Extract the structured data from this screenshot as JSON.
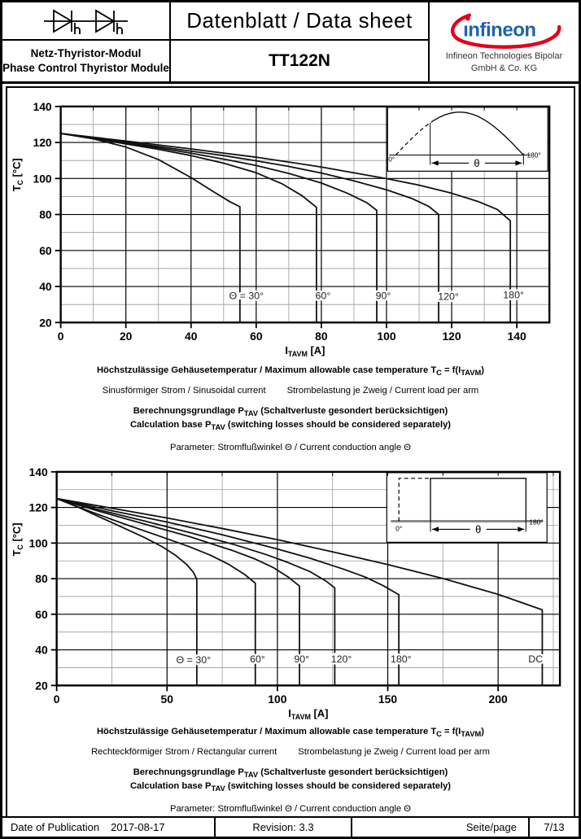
{
  "header": {
    "title": "Datenblatt / Data sheet",
    "part_number": "TT122N",
    "product_de": "Netz-Thyristor-Modul",
    "product_en": "Phase Control Thyristor Module",
    "logo_text": "infineon",
    "company_line1": "Infineon Technologies Bipolar",
    "company_line2": "GmbH & Co. KG",
    "logo_blue": "#1C63AE",
    "logo_red": "#E2001A"
  },
  "chart_data": [
    {
      "type": "line",
      "caption_title": "Höchstzulässige Gehäusetemperatur / Maximum allowable case temperature T_{C} = f(I_{TAVM})",
      "caption_current": "Sinusförmiger Strom / Sinusoidal current",
      "caption_load": "Strombelastung je Zweig / Current load per arm",
      "caption_calc_de": "Berechnungsgrundlage P_{TAV} (Schaltverluste gesondert berücksichtigen)",
      "caption_calc_en": "Calculation base P_{TAV} (switching losses should be considered separately)",
      "caption_param": "Parameter: Stromflußwinkel Θ  / Current conduction angle Θ",
      "xlabel": "I_{TAVM} [A]",
      "ylabel": "T_{C} [°C]",
      "xlim": [
        0,
        150
      ],
      "ylim": [
        20,
        140
      ],
      "x_ticks": [
        0,
        20,
        40,
        60,
        80,
        100,
        120,
        140
      ],
      "y_ticks": [
        20,
        40,
        60,
        80,
        100,
        120,
        140
      ],
      "x_minor": 10,
      "y_minor": 10,
      "grid": true,
      "legend_position": "inline-labels",
      "series": [
        {
          "name": "30deg",
          "points": [
            [
              0,
              125
            ],
            [
              10,
              122
            ],
            [
              20,
              117.5
            ],
            [
              30,
              110.5
            ],
            [
              40,
              100.5
            ],
            [
              47,
              92.5
            ],
            [
              52,
              87
            ],
            [
              55,
              84.3
            ]
          ]
        },
        {
          "name": "60deg",
          "points": [
            [
              0,
              125
            ],
            [
              10,
              122.2
            ],
            [
              20,
              119.2
            ],
            [
              30,
              116.2
            ],
            [
              40,
              112.7
            ],
            [
              50,
              108.5
            ],
            [
              60,
              103.2
            ],
            [
              68,
              97
            ],
            [
              74,
              90.5
            ],
            [
              78.5,
              84
            ]
          ]
        },
        {
          "name": "90deg",
          "points": [
            [
              0,
              125
            ],
            [
              10,
              122.4
            ],
            [
              20,
              119.8
            ],
            [
              30,
              117
            ],
            [
              40,
              114
            ],
            [
              50,
              110.8
            ],
            [
              60,
              107.2
            ],
            [
              70,
              102.8
            ],
            [
              80,
              97.5
            ],
            [
              88,
              91.8
            ],
            [
              94,
              86.5
            ],
            [
              97,
              82.3
            ]
          ]
        },
        {
          "name": "120deg",
          "points": [
            [
              0,
              125
            ],
            [
              10,
              122.6
            ],
            [
              20,
              120.2
            ],
            [
              30,
              117.7
            ],
            [
              40,
              115.2
            ],
            [
              50,
              112.7
            ],
            [
              60,
              109.8
            ],
            [
              70,
              106.7
            ],
            [
              80,
              103
            ],
            [
              90,
              98.7
            ],
            [
              100,
              93.7
            ],
            [
              108,
              88.7
            ],
            [
              113,
              84.5
            ],
            [
              116,
              80
            ]
          ]
        },
        {
          "name": "180deg",
          "points": [
            [
              0,
              125
            ],
            [
              20,
              120.8
            ],
            [
              40,
              116.4
            ],
            [
              60,
              111.8
            ],
            [
              80,
              106.4
            ],
            [
              100,
              99.9
            ],
            [
              110,
              96.3
            ],
            [
              120,
              91.8
            ],
            [
              128,
              87.3
            ],
            [
              134,
              82.8
            ],
            [
              138,
              76.5
            ]
          ]
        }
      ],
      "labels": [
        {
          "text": "Θ = 30°",
          "x": 57,
          "y": 33
        },
        {
          "text": "60°",
          "x": 80.5,
          "y": 33
        },
        {
          "text": "90°",
          "x": 99,
          "y": 33
        },
        {
          "text": "120°",
          "x": 119,
          "y": 32.5
        },
        {
          "text": "180°",
          "x": 139,
          "y": 33.5
        }
      ],
      "inset": {
        "kind": "halfsine",
        "label_0": "0°",
        "label_180": "180°",
        "label_theta": "θ"
      }
    },
    {
      "type": "line",
      "caption_title": "Höchstzulässige Gehäusetemperatur / Maximum allowable case temperature T_{C} = f(I_{TAVM})",
      "caption_current": "Rechteckförmiger Strom / Rectangular current",
      "caption_load": "Strombelastung je Zweig / Current load per arm",
      "caption_calc_de": "Berechnungsgrundlage P_{TAV} (Schaltverluste gesondert berücksichtigen)",
      "caption_calc_en": "Calculation base P_{TAV} (switching losses should be considered separately)",
      "caption_param": "Parameter: Stromflußwinkel Θ  / Current conduction angle Θ",
      "xlabel": "I_{TAVM} [A]",
      "ylabel": "T_{C} [°C]",
      "xlim": [
        0,
        228
      ],
      "ylim": [
        20,
        140
      ],
      "x_ticks": [
        0,
        50,
        100,
        150,
        200
      ],
      "y_ticks": [
        20,
        40,
        60,
        80,
        100,
        120,
        140
      ],
      "x_minor": 25,
      "y_minor": 10,
      "grid": true,
      "legend_position": "inline-labels",
      "series": [
        {
          "name": "30deg",
          "points": [
            [
              0,
              125
            ],
            [
              10,
              120
            ],
            [
              20,
              114.3
            ],
            [
              30,
              108.7
            ],
            [
              40,
              103
            ],
            [
              48,
              97.8
            ],
            [
              54,
              93
            ],
            [
              59,
              87.8
            ],
            [
              62,
              83.5
            ],
            [
              63.5,
              79.5
            ]
          ]
        },
        {
          "name": "60deg",
          "points": [
            [
              0,
              125
            ],
            [
              15,
              117.8
            ],
            [
              30,
              111
            ],
            [
              45,
              104.6
            ],
            [
              60,
              98
            ],
            [
              70,
              93
            ],
            [
              78,
              88
            ],
            [
              85,
              82.5
            ],
            [
              90,
              77.5
            ]
          ]
        },
        {
          "name": "90deg",
          "points": [
            [
              0,
              125
            ],
            [
              20,
              117.6
            ],
            [
              40,
              110.6
            ],
            [
              60,
              103.7
            ],
            [
              80,
              95.7
            ],
            [
              90,
              91
            ],
            [
              98,
              86.3
            ],
            [
              105,
              80.8
            ],
            [
              110,
              75.8
            ]
          ]
        },
        {
          "name": "120deg",
          "points": [
            [
              0,
              125
            ],
            [
              20,
              118.4
            ],
            [
              40,
              112.3
            ],
            [
              60,
              106
            ],
            [
              80,
              99.3
            ],
            [
              95,
              93.5
            ],
            [
              105,
              89
            ],
            [
              115,
              83.8
            ],
            [
              122,
              78.7
            ],
            [
              126,
              74.8
            ]
          ]
        },
        {
          "name": "180deg",
          "points": [
            [
              0,
              125
            ],
            [
              25,
              118.2
            ],
            [
              50,
              111.8
            ],
            [
              75,
              104.7
            ],
            [
              100,
              96.7
            ],
            [
              115,
              91.4
            ],
            [
              130,
              85.3
            ],
            [
              140,
              80.8
            ],
            [
              148,
              76
            ],
            [
              155,
              71
            ]
          ]
        },
        {
          "name": "DC",
          "points": [
            [
              0,
              125
            ],
            [
              25,
              119.6
            ],
            [
              50,
              114.1
            ],
            [
              75,
              108.2
            ],
            [
              100,
              101.9
            ],
            [
              125,
              95.1
            ],
            [
              150,
              87.9
            ],
            [
              175,
              80.1
            ],
            [
              200,
              71.2
            ],
            [
              220,
              62.5
            ]
          ]
        }
      ],
      "labels": [
        {
          "text": "Θ = 30°",
          "x": 62,
          "y": 32.5
        },
        {
          "text": "60°",
          "x": 91,
          "y": 33
        },
        {
          "text": "90°",
          "x": 111,
          "y": 33
        },
        {
          "text": "120°",
          "x": 129,
          "y": 33
        },
        {
          "text": "180°",
          "x": 156,
          "y": 33
        },
        {
          "text": "DC",
          "x": 217,
          "y": 33
        }
      ],
      "inset": {
        "kind": "rectpulse",
        "label_0": "0°",
        "label_180": "180°",
        "label_theta": "θ"
      }
    }
  ],
  "footer": {
    "publication_label": "Date of Publication",
    "publication_date": "2017-08-17",
    "revision": "Revision: 3.3",
    "page_label": "Seite/page",
    "page_value": "7/13"
  }
}
